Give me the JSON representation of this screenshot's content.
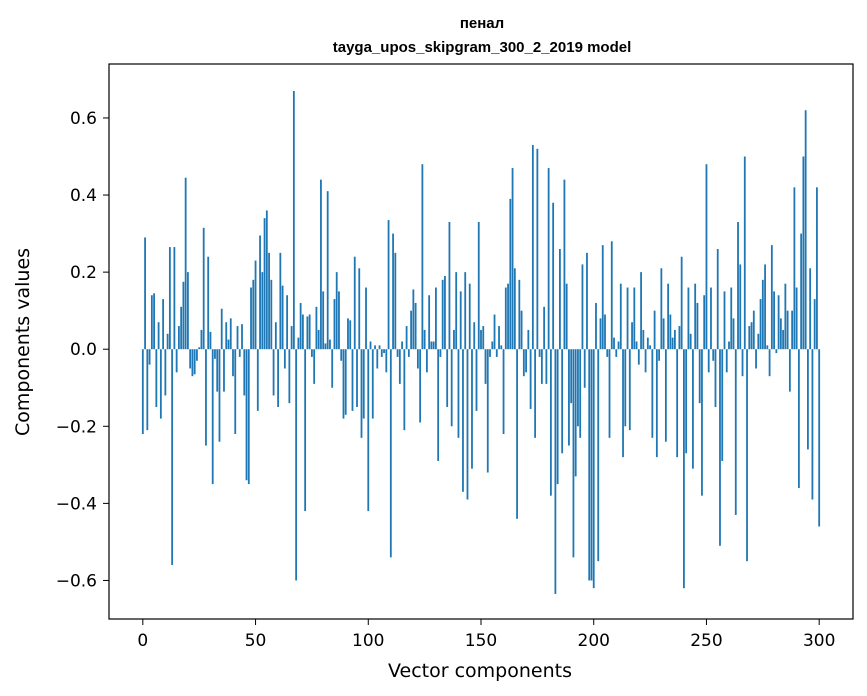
{
  "chart_data": {
    "type": "bar",
    "title": "пенал",
    "subtitle": "tayga_upos_skipgram_300_2_2019 model",
    "xlabel": "Vector components",
    "ylabel": "Components values",
    "xlim": [
      -15,
      315
    ],
    "ylim": [
      -0.7,
      0.74
    ],
    "xticks": [
      0,
      50,
      100,
      150,
      200,
      250,
      300
    ],
    "xtick_labels": [
      "0",
      "50",
      "100",
      "150",
      "200",
      "250",
      "300"
    ],
    "yticks": [
      -0.6,
      -0.4,
      -0.2,
      0.0,
      0.2,
      0.4,
      0.6
    ],
    "ytick_labels": [
      "−0.6",
      "−0.4",
      "−0.2",
      "0.0",
      "0.2",
      "0.4",
      "0.6"
    ],
    "bar_color": "#1f77b4",
    "values": [
      -0.22,
      0.29,
      -0.21,
      -0.04,
      0.14,
      0.145,
      -0.15,
      0.07,
      -0.18,
      0.13,
      -0.12,
      0.04,
      0.265,
      -0.56,
      0.265,
      -0.06,
      0.06,
      0.11,
      0.175,
      0.445,
      0.2,
      -0.05,
      -0.07,
      -0.065,
      -0.03,
      0.005,
      0.05,
      0.315,
      -0.25,
      0.24,
      0.045,
      -0.35,
      -0.025,
      -0.11,
      -0.24,
      0.105,
      -0.11,
      0.07,
      0.025,
      0.08,
      -0.07,
      -0.22,
      0.06,
      -0.02,
      0.065,
      -0.12,
      -0.34,
      -0.35,
      0.16,
      0.18,
      0.23,
      -0.16,
      0.295,
      0.2,
      0.34,
      0.36,
      0.25,
      0.18,
      -0.12,
      0.07,
      -0.15,
      0.25,
      0.165,
      -0.05,
      0.14,
      -0.14,
      0.06,
      0.67,
      -0.6,
      0.03,
      0.12,
      0.09,
      -0.42,
      0.085,
      0.09,
      -0.02,
      -0.09,
      0.11,
      0.05,
      0.44,
      0.15,
      0.015,
      0.41,
      0.025,
      -0.1,
      0.13,
      0.2,
      0.15,
      -0.03,
      -0.18,
      -0.17,
      0.08,
      0.075,
      -0.16,
      0.24,
      -0.15,
      0.21,
      -0.23,
      -0.18,
      0.16,
      -0.42,
      0.02,
      -0.18,
      0.01,
      -0.05,
      0.01,
      -0.02,
      -0.01,
      -0.06,
      0.335,
      -0.54,
      0.3,
      0.25,
      -0.02,
      -0.09,
      0.02,
      -0.21,
      0.06,
      -0.02,
      0.1,
      0.155,
      0.12,
      -0.05,
      -0.19,
      0.48,
      0.05,
      -0.06,
      0.14,
      0.02,
      0.02,
      0.16,
      -0.29,
      -0.02,
      0.18,
      0.19,
      -0.15,
      0.33,
      -0.2,
      0.05,
      0.2,
      -0.23,
      0.15,
      -0.37,
      0.2,
      -0.39,
      0.17,
      -0.31,
      0.07,
      -0.16,
      0.33,
      0.05,
      0.06,
      -0.09,
      -0.32,
      -0.02,
      0.02,
      0.09,
      -0.02,
      0.06,
      0.01,
      -0.22,
      0.16,
      0.17,
      0.39,
      0.47,
      0.21,
      -0.44,
      0.18,
      0.1,
      -0.07,
      -0.06,
      0.05,
      -0.155,
      0.53,
      -0.23,
      0.52,
      -0.02,
      -0.09,
      0.11,
      -0.09,
      0.47,
      -0.38,
      0.38,
      -0.635,
      -0.35,
      0.26,
      -0.27,
      0.44,
      0.17,
      -0.25,
      -0.14,
      -0.54,
      -0.33,
      -0.2,
      -0.23,
      0.22,
      -0.1,
      0.25,
      -0.6,
      -0.6,
      -0.62,
      0.12,
      -0.55,
      0.08,
      0.27,
      0.09,
      -0.02,
      -0.23,
      0.28,
      0.03,
      -0.02,
      0.02,
      0.17,
      -0.28,
      -0.2,
      0.16,
      -0.21,
      0.07,
      0.16,
      0.02,
      -0.04,
      0.2,
      0.05,
      -0.06,
      0.03,
      0.01,
      -0.23,
      0.1,
      -0.28,
      -0.03,
      0.21,
      0.08,
      -0.24,
      0.17,
      0.09,
      0.03,
      0.05,
      -0.28,
      0.06,
      0.24,
      -0.62,
      -0.27,
      0.16,
      0.04,
      -0.31,
      0.17,
      0.12,
      -0.14,
      -0.38,
      0.14,
      0.48,
      -0.06,
      0.16,
      -0.03,
      -0.15,
      0.26,
      -0.51,
      -0.29,
      0.15,
      -0.06,
      0.02,
      0.16,
      0.08,
      -0.43,
      0.33,
      0.22,
      -0.07,
      0.5,
      -0.55,
      0.06,
      0.07,
      0.1,
      -0.05,
      0.04,
      0.13,
      0.18,
      0.22,
      0.01,
      -0.07,
      0.27,
      0.15,
      -0.01,
      0.14,
      0.08,
      0.05,
      0.17,
      0.1,
      -0.11,
      0.1,
      0.42,
      0.16,
      -0.36,
      0.3,
      0.5,
      0.62,
      -0.26,
      0.21,
      -0.39,
      0.13,
      0.42,
      -0.46
    ]
  }
}
